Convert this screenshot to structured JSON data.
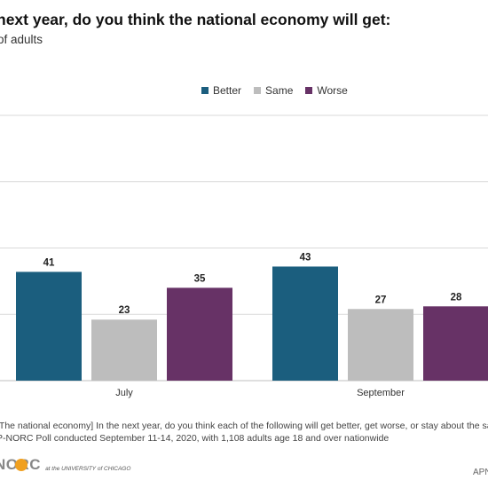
{
  "title": "next year, do you think the national economy will get:",
  "subtitle": "of adults",
  "question_note": "[The national economy] In the next year, do you think each of the following will get better, get worse, or stay about the same?",
  "source_note": "P-NORC Poll conducted September 11-14, 2020, with 1,108 adults age 18 and over nationwide",
  "logo": {
    "name": "NORC",
    "sub": "at the UNIVERSITY of CHICAGO"
  },
  "ap_mark": "APN",
  "chart_data": {
    "type": "bar",
    "categories": [
      "July",
      "September"
    ],
    "series": [
      {
        "name": "Better",
        "color": "#1b5e7e",
        "values": [
          41,
          43
        ]
      },
      {
        "name": "Same",
        "color": "#bdbdbd",
        "values": [
          23,
          27
        ]
      },
      {
        "name": "Worse",
        "color": "#673266",
        "values": [
          35,
          28
        ]
      }
    ],
    "title": "next year, do you think the national economy will get:",
    "subtitle": "of adults",
    "ylim": [
      0,
      100
    ],
    "grid": true,
    "legend": "top-center"
  }
}
